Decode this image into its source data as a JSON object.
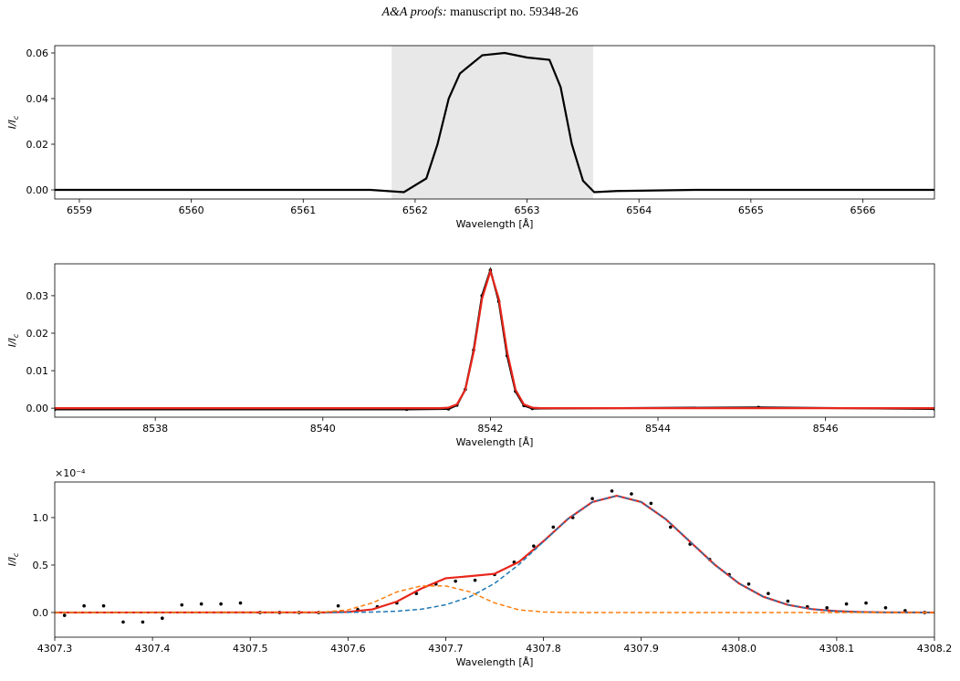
{
  "header": {
    "journal": "A&A proofs:",
    "manuscript": "manuscript no. 59348-26"
  },
  "chart_data": [
    {
      "type": "line",
      "xlabel": "Wavelength [Å]",
      "ylabel": [
        "I/I",
        "c"
      ],
      "xlim": [
        6558.78,
        6566.64
      ],
      "ylim": [
        -0.004,
        0.0632
      ],
      "xticks": [
        6559,
        6560,
        6561,
        6562,
        6563,
        6564,
        6565,
        6566
      ],
      "yticks": [
        {
          "value": 0,
          "label": "0.00"
        },
        {
          "value": 0.02,
          "label": "0.02"
        },
        {
          "value": 0.04,
          "label": "0.04"
        },
        {
          "value": 0.06,
          "label": "0.06"
        }
      ],
      "span": [
        6561.79,
        6563.59
      ],
      "span_color": "#e8e8e8",
      "series": [
        {
          "color": "#000000",
          "mode": "line",
          "dash": false,
          "x": [
            6558.78,
            6561.0,
            6561.6,
            6561.9,
            6562.1,
            6562.2,
            6562.3,
            6562.4,
            6562.5,
            6562.6,
            6562.8,
            6563.0,
            6563.2,
            6563.3,
            6563.4,
            6563.5,
            6563.6,
            6563.8,
            6564.5,
            6566.64
          ],
          "values": [
            0,
            0,
            0,
            -0.001,
            0.005,
            0.02,
            0.04,
            0.051,
            0.055,
            0.059,
            0.06,
            0.058,
            0.057,
            0.045,
            0.02,
            0.004,
            -0.001,
            -0.0005,
            0,
            0
          ]
        }
      ]
    },
    {
      "type": "line",
      "xlabel": "Wavelength [Å]",
      "ylabel": [
        "I/I",
        "c"
      ],
      "xlim": [
        8536.8,
        8547.3
      ],
      "ylim": [
        -0.0024,
        0.0385
      ],
      "xticks": [
        8538,
        8540,
        8542,
        8544,
        8546
      ],
      "yticks": [
        {
          "value": 0,
          "label": "0.00"
        },
        {
          "value": 0.01,
          "label": "0.01"
        },
        {
          "value": 0.02,
          "label": "0.02"
        },
        {
          "value": 0.03,
          "label": "0.03"
        }
      ],
      "series": [
        {
          "color": "#000000",
          "mode": "line+markers",
          "dash": false,
          "x": [
            8536.8,
            8541.0,
            8541.5,
            8541.6,
            8541.7,
            8541.8,
            8541.9,
            8542.0,
            8542.1,
            8542.2,
            8542.3,
            8542.4,
            8542.5,
            8545.2,
            8547.3
          ],
          "values": [
            -0.0003,
            -0.0003,
            -0.0002,
            0.0008,
            0.005,
            0.0155,
            0.03,
            0.0368,
            0.0285,
            0.014,
            0.0045,
            0.0007,
            -0.0001,
            0.0002,
            -0.0002
          ]
        },
        {
          "color": "#e8261b",
          "mode": "line",
          "dash": false,
          "x": [
            8536.8,
            8541.4,
            8541.5,
            8541.6,
            8541.7,
            8541.8,
            8541.9,
            8542.0,
            8542.1,
            8542.2,
            8542.3,
            8542.4,
            8542.5,
            8542.6,
            8547.3
          ],
          "values": [
            0,
            0,
            0.00014,
            0.001,
            0.0049,
            0.015,
            0.0292,
            0.0365,
            0.0292,
            0.015,
            0.0049,
            0.001,
            0.00014,
            0,
            0
          ]
        }
      ]
    },
    {
      "type": "line",
      "xlabel": "Wavelength [Å]",
      "ylabel": [
        "I/I",
        "c"
      ],
      "y_offset_label": "×10⁻⁴",
      "xlim": [
        4307.3,
        4308.2
      ],
      "ylim": [
        -0.26,
        1.375
      ],
      "xticks": [
        4307.3,
        4307.4,
        4307.5,
        4307.6,
        4307.7,
        4307.8,
        4307.9,
        {
          "value": 4308.0,
          "label": "4308.0"
        },
        4308.1,
        4308.2
      ],
      "yticks": [
        {
          "value": 0,
          "label": "0.0"
        },
        0.5,
        {
          "value": 1,
          "label": "1.0"
        }
      ],
      "series": [
        {
          "color": "#000000",
          "mode": "markers",
          "dash": false,
          "x": [
            4307.31,
            4307.33,
            4307.35,
            4307.37,
            4307.39,
            4307.41,
            4307.43,
            4307.45,
            4307.47,
            4307.49,
            4307.51,
            4307.53,
            4307.55,
            4307.57,
            4307.59,
            4307.61,
            4307.63,
            4307.65,
            4307.67,
            4307.69,
            4307.71,
            4307.73,
            4307.75,
            4307.77,
            4307.79,
            4307.81,
            4307.83,
            4307.85,
            4307.87,
            4307.89,
            4307.91,
            4307.93,
            4307.95,
            4307.97,
            4307.99,
            4308.01,
            4308.03,
            4308.05,
            4308.07,
            4308.09,
            4308.11,
            4308.13,
            4308.15,
            4308.17,
            4308.19
          ],
          "values": [
            -0.03,
            0.07,
            0.07,
            -0.1,
            -0.1,
            -0.06,
            0.08,
            0.09,
            0.09,
            0.1,
            0.0,
            0.0,
            0.0,
            0.0,
            0.07,
            0.03,
            0.06,
            0.1,
            0.2,
            0.3,
            0.33,
            0.34,
            0.4,
            0.53,
            0.7,
            0.9,
            1.0,
            1.2,
            1.28,
            1.25,
            1.15,
            0.9,
            0.72,
            0.56,
            0.4,
            0.3,
            0.2,
            0.12,
            0.06,
            0.05,
            0.09,
            0.1,
            0.05,
            0.02,
            0.0
          ]
        },
        {
          "color": "#e8261b",
          "mode": "line",
          "dash": false,
          "x": [
            4307.3,
            4307.575,
            4307.6,
            4307.625,
            4307.65,
            4307.675,
            4307.7,
            4307.725,
            4307.75,
            4307.775,
            4307.8,
            4307.825,
            4307.85,
            4307.875,
            4307.9,
            4307.925,
            4307.95,
            4307.975,
            4308.0,
            4308.025,
            4308.05,
            4308.075,
            4308.1,
            4308.125,
            4308.15,
            4308.2
          ],
          "values": [
            0,
            0.0009,
            0.0065,
            0.0327,
            0.115,
            0.252,
            0.361,
            0.383,
            0.408,
            0.534,
            0.751,
            0.986,
            1.164,
            1.23,
            1.164,
            0.985,
            0.746,
            0.506,
            0.307,
            0.166,
            0.081,
            0.035,
            0.014,
            0.005,
            0.0015,
            0
          ]
        },
        {
          "color": "#1f77b4",
          "mode": "line",
          "dash": true,
          "x": [
            4307.3,
            4307.55,
            4307.575,
            4307.6,
            4307.625,
            4307.65,
            4307.675,
            4307.7,
            4307.725,
            4307.75,
            4307.775,
            4307.8,
            4307.825,
            4307.85,
            4307.875,
            4307.9,
            4307.925,
            4307.95,
            4307.975,
            4308.0,
            4308.025,
            4308.05,
            4308.075,
            4308.1,
            4308.125,
            4308.15,
            4308.175,
            4308.2
          ],
          "values": [
            0,
            0,
            0.0004,
            0.0015,
            0.0047,
            0.0136,
            0.035,
            0.081,
            0.166,
            0.307,
            0.506,
            0.746,
            0.985,
            1.164,
            1.23,
            1.164,
            0.985,
            0.746,
            0.506,
            0.307,
            0.166,
            0.081,
            0.035,
            0.0136,
            0.0047,
            0.0015,
            0.0004,
            0
          ]
        },
        {
          "color": "#ff7f0e",
          "mode": "line",
          "dash": true,
          "x": [
            4307.3,
            4307.55,
            4307.575,
            4307.6,
            4307.625,
            4307.65,
            4307.675,
            4307.7,
            4307.725,
            4307.75,
            4307.775,
            4307.8,
            4307.825,
            4307.85,
            4308.2
          ],
          "values": [
            0,
            0.0005,
            0.005,
            0.028,
            0.101,
            0.217,
            0.28,
            0.28,
            0.217,
            0.101,
            0.028,
            0.005,
            0.0005,
            0,
            0
          ]
        }
      ]
    }
  ]
}
